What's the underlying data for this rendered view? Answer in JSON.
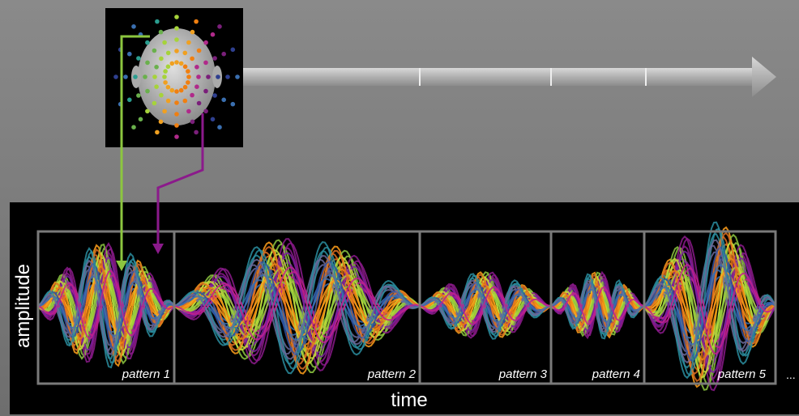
{
  "axis_labels": {
    "y": "amplitude",
    "x": "time"
  },
  "patterns": [
    "pattern 1",
    "pattern 2",
    "pattern 3",
    "pattern 4",
    "pattern 5"
  ],
  "ellipsis": "..."
}
